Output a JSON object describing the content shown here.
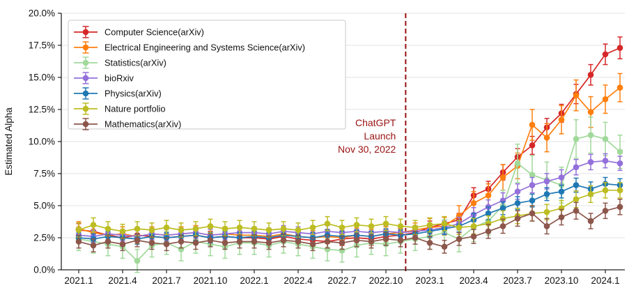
{
  "chart_data": {
    "type": "line",
    "title": "",
    "ylabel": "Estimated Alpha",
    "xlabel": "",
    "ylim": [
      0.0,
      20.0
    ],
    "ytick_step": 2.5,
    "ytick_suffix": "%",
    "grid": "horizontal",
    "legend_position": "upper left",
    "months": [
      "2021.1",
      "2021.2",
      "2021.3",
      "2021.4",
      "2021.5",
      "2021.6",
      "2021.7",
      "2021.8",
      "2021.9",
      "2021.10",
      "2021.11",
      "2021.12",
      "2022.1",
      "2022.2",
      "2022.3",
      "2022.4",
      "2022.5",
      "2022.6",
      "2022.7",
      "2022.8",
      "2022.9",
      "2022.10",
      "2022.11",
      "2022.12",
      "2023.1",
      "2023.2",
      "2023.3",
      "2023.4",
      "2023.5",
      "2023.6",
      "2023.7",
      "2023.8",
      "2023.9",
      "2023.10",
      "2023.11",
      "2023.12",
      "2024.1",
      "2024.2"
    ],
    "xtick_labels": [
      "2021.1",
      "2021.4",
      "2021.7",
      "2021.10",
      "2022.1",
      "2022.4",
      "2022.7",
      "2022.10",
      "2023.1",
      "2023.4",
      "2023.7",
      "2023.10",
      "2024.1"
    ],
    "ytick_labels": [
      "0.0%",
      "2.5%",
      "5.0%",
      "7.5%",
      "10.0%",
      "12.5%",
      "15.0%",
      "17.5%",
      "20.0%"
    ],
    "series": [
      {
        "name": "Computer Science(arXiv)",
        "color": "#d62728",
        "values": [
          3.1,
          3.0,
          2.7,
          2.5,
          2.7,
          2.6,
          2.5,
          2.6,
          2.7,
          2.5,
          2.6,
          2.5,
          2.5,
          2.4,
          2.6,
          2.4,
          2.3,
          2.2,
          2.4,
          2.5,
          2.4,
          2.6,
          2.7,
          2.9,
          3.3,
          3.6,
          3.9,
          5.8,
          6.3,
          7.6,
          8.8,
          9.7,
          11.1,
          12.2,
          13.7,
          15.2,
          16.8,
          17.3
        ],
        "errors": [
          0.5,
          0.5,
          0.5,
          0.5,
          0.5,
          0.5,
          0.5,
          0.5,
          0.5,
          0.5,
          0.5,
          0.5,
          0.5,
          0.5,
          0.5,
          0.5,
          0.5,
          0.5,
          0.5,
          0.5,
          0.5,
          0.5,
          0.5,
          0.5,
          0.5,
          0.5,
          0.5,
          0.6,
          0.6,
          0.6,
          0.65,
          0.7,
          0.7,
          0.7,
          0.75,
          0.8,
          0.8,
          0.85
        ]
      },
      {
        "name": "Electrical Engineering and Systems Science(arXiv)",
        "color": "#ff7f0e",
        "values": [
          3.2,
          2.9,
          2.7,
          2.8,
          2.6,
          2.8,
          2.7,
          2.8,
          2.9,
          2.7,
          2.8,
          2.7,
          2.7,
          2.6,
          2.8,
          2.6,
          2.5,
          2.6,
          2.5,
          2.7,
          2.6,
          2.8,
          2.9,
          3.1,
          3.3,
          3.4,
          4.2,
          5.2,
          5.8,
          7.2,
          8.1,
          11.3,
          10.3,
          11.7,
          13.6,
          12.3,
          13.3,
          14.2
        ],
        "errors": [
          0.55,
          0.55,
          0.55,
          0.55,
          0.55,
          0.55,
          0.55,
          0.55,
          0.55,
          0.55,
          0.55,
          0.55,
          0.55,
          0.55,
          0.55,
          0.55,
          0.55,
          0.55,
          0.55,
          0.55,
          0.55,
          0.55,
          0.55,
          0.55,
          0.7,
          0.7,
          0.8,
          0.9,
          0.9,
          1.0,
          1.0,
          1.2,
          1.1,
          1.1,
          1.2,
          1.2,
          1.1,
          1.1
        ]
      },
      {
        "name": "Statistics(arXiv)",
        "color": "#a1d99b",
        "values": [
          2.4,
          2.2,
          2.0,
          1.8,
          0.7,
          1.9,
          2.1,
          1.6,
          2.2,
          2.0,
          1.8,
          2.1,
          2.1,
          1.9,
          2.2,
          2.0,
          1.8,
          1.6,
          1.5,
          1.9,
          2.1,
          2.0,
          2.2,
          2.4,
          2.6,
          2.9,
          2.4,
          3.3,
          3.8,
          5.0,
          8.3,
          7.4,
          7.0,
          6.6,
          10.2,
          10.5,
          10.2,
          9.2
        ],
        "errors": [
          0.9,
          0.9,
          0.9,
          0.9,
          0.9,
          0.9,
          0.9,
          0.9,
          0.9,
          0.9,
          0.9,
          0.9,
          0.9,
          0.9,
          0.9,
          0.9,
          0.9,
          0.9,
          0.9,
          0.9,
          0.9,
          0.9,
          0.9,
          0.9,
          1.0,
          1.0,
          1.0,
          1.1,
          1.1,
          1.2,
          1.5,
          1.5,
          1.4,
          1.4,
          1.5,
          1.4,
          1.3,
          1.3
        ]
      },
      {
        "name": "bioRxiv",
        "color": "#9370db",
        "values": [
          2.7,
          2.6,
          2.8,
          2.7,
          2.6,
          2.8,
          2.7,
          2.8,
          2.9,
          2.7,
          2.8,
          2.9,
          2.9,
          2.8,
          3.0,
          2.9,
          2.8,
          3.0,
          2.9,
          3.0,
          2.9,
          3.0,
          2.9,
          3.0,
          3.1,
          3.3,
          3.6,
          4.3,
          4.9,
          5.4,
          6.1,
          6.6,
          6.9,
          7.2,
          8.0,
          8.4,
          8.5,
          8.3
        ],
        "errors": [
          0.45,
          0.45,
          0.45,
          0.45,
          0.45,
          0.45,
          0.45,
          0.45,
          0.45,
          0.45,
          0.45,
          0.45,
          0.45,
          0.45,
          0.45,
          0.45,
          0.45,
          0.45,
          0.45,
          0.45,
          0.45,
          0.45,
          0.45,
          0.45,
          0.5,
          0.5,
          0.5,
          0.55,
          0.55,
          0.6,
          0.6,
          0.6,
          0.6,
          0.6,
          0.6,
          0.6,
          0.55,
          0.55
        ]
      },
      {
        "name": "Physics(arXiv)",
        "color": "#1f77b4",
        "values": [
          2.5,
          2.4,
          2.6,
          2.5,
          2.4,
          2.6,
          2.5,
          2.6,
          2.7,
          2.5,
          2.6,
          2.5,
          2.6,
          2.5,
          2.7,
          2.6,
          2.5,
          2.7,
          2.6,
          2.7,
          2.6,
          2.8,
          2.7,
          2.8,
          3.0,
          3.2,
          3.4,
          3.9,
          4.4,
          4.8,
          5.2,
          5.4,
          5.9,
          6.1,
          6.6,
          6.3,
          6.7,
          6.6
        ],
        "errors": [
          0.4,
          0.4,
          0.4,
          0.4,
          0.4,
          0.4,
          0.4,
          0.4,
          0.4,
          0.4,
          0.4,
          0.4,
          0.4,
          0.4,
          0.4,
          0.4,
          0.4,
          0.4,
          0.4,
          0.4,
          0.4,
          0.4,
          0.4,
          0.4,
          0.45,
          0.45,
          0.45,
          0.5,
          0.5,
          0.5,
          0.5,
          0.5,
          0.5,
          0.5,
          0.55,
          0.55,
          0.5,
          0.5
        ]
      },
      {
        "name": "Nature portfolio",
        "color": "#bcbd22",
        "values": [
          3.1,
          3.5,
          3.2,
          3.0,
          3.2,
          3.1,
          3.3,
          3.1,
          3.2,
          3.4,
          3.2,
          3.3,
          3.2,
          3.1,
          3.2,
          3.1,
          3.3,
          3.6,
          3.3,
          3.5,
          3.4,
          3.6,
          3.4,
          3.3,
          3.5,
          3.6,
          3.3,
          3.4,
          3.6,
          4.0,
          4.2,
          4.4,
          4.5,
          4.8,
          5.5,
          5.9,
          6.2,
          6.2
        ],
        "errors": [
          0.55,
          0.55,
          0.55,
          0.55,
          0.55,
          0.55,
          0.55,
          0.55,
          0.55,
          0.55,
          0.55,
          0.55,
          0.55,
          0.55,
          0.55,
          0.55,
          0.55,
          0.55,
          0.55,
          0.55,
          0.55,
          0.55,
          0.55,
          0.55,
          0.55,
          0.55,
          0.55,
          0.6,
          0.6,
          0.6,
          0.6,
          0.6,
          0.6,
          0.6,
          0.65,
          0.65,
          0.6,
          0.6
        ]
      },
      {
        "name": "Mathematics(arXiv)",
        "color": "#8c564b",
        "values": [
          2.2,
          1.9,
          2.2,
          2.0,
          2.3,
          2.1,
          2.0,
          2.2,
          2.1,
          2.3,
          2.1,
          2.2,
          2.2,
          2.1,
          2.3,
          2.2,
          2.0,
          2.2,
          2.1,
          2.3,
          2.2,
          2.4,
          2.3,
          2.5,
          2.1,
          1.8,
          2.4,
          2.6,
          3.0,
          3.4,
          4.0,
          4.4,
          3.4,
          4.1,
          4.6,
          3.8,
          4.6,
          4.9
        ],
        "errors": [
          0.5,
          0.5,
          0.5,
          0.5,
          0.5,
          0.5,
          0.5,
          0.5,
          0.5,
          0.5,
          0.5,
          0.5,
          0.5,
          0.5,
          0.5,
          0.5,
          0.5,
          0.5,
          0.5,
          0.5,
          0.5,
          0.5,
          0.5,
          0.5,
          0.5,
          0.5,
          0.5,
          0.55,
          0.55,
          0.55,
          0.6,
          0.6,
          0.6,
          0.6,
          0.65,
          0.6,
          0.6,
          0.6
        ]
      }
    ],
    "annotation": {
      "lines": [
        "ChatGPT",
        "Launch",
        "Nov 30, 2022"
      ],
      "color": "#991111",
      "event_x_index": 22.35,
      "line_style": "dashed"
    }
  }
}
